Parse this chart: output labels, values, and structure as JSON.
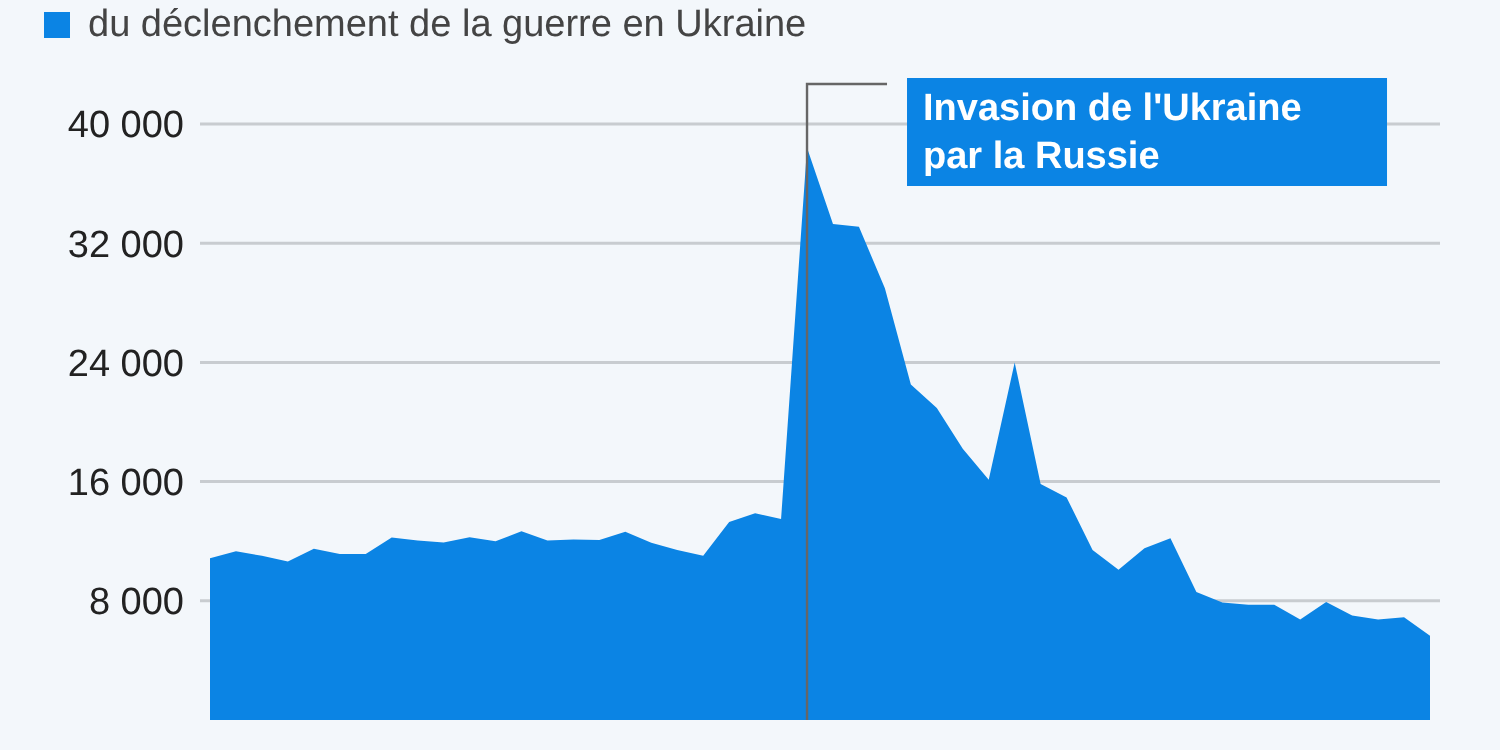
{
  "chart_data": {
    "type": "area",
    "categories": [
      null,
      null,
      null,
      null,
      null,
      null,
      null,
      null,
      null,
      null,
      null,
      null,
      null,
      null,
      null,
      null,
      null,
      null,
      null,
      null,
      null,
      null,
      null,
      null,
      null,
      null,
      null,
      null,
      null,
      null,
      null,
      null,
      null,
      null,
      null,
      null,
      null,
      null,
      null,
      null,
      null,
      null,
      null,
      null,
      null,
      null,
      null,
      null
    ],
    "series": [
      {
        "name": "du déclenchement de la guerre en Ukraine",
        "color": "#0b84e4",
        "values": [
          10860,
          11330,
          11020,
          10630,
          11490,
          11140,
          11140,
          12240,
          12040,
          11920,
          12270,
          12000,
          12670,
          12040,
          12120,
          12080,
          12630,
          11900,
          11410,
          11020,
          13290,
          13880,
          13490,
          38400,
          33290,
          33100,
          28980,
          22510,
          20940,
          18200,
          16120,
          24000,
          15840,
          14940,
          11410,
          10080,
          11530,
          12200,
          8590,
          7880,
          7730,
          7730,
          6750,
          7920,
          7020,
          6750,
          6900,
          5650
        ]
      }
    ],
    "ylim": [
      0,
      40000
    ],
    "yticks": [
      {
        "value": 8000,
        "label": "8 000"
      },
      {
        "value": 16000,
        "label": "16 000"
      },
      {
        "value": 24000,
        "label": "24 000"
      },
      {
        "value": 32000,
        "label": "32 000"
      },
      {
        "value": 40000,
        "label": "40 000"
      }
    ],
    "tick_labels": "y",
    "grid": "y",
    "legend": "top left",
    "annotations": [
      "Invasion de l'Ukraine par la Russie"
    ]
  }
}
